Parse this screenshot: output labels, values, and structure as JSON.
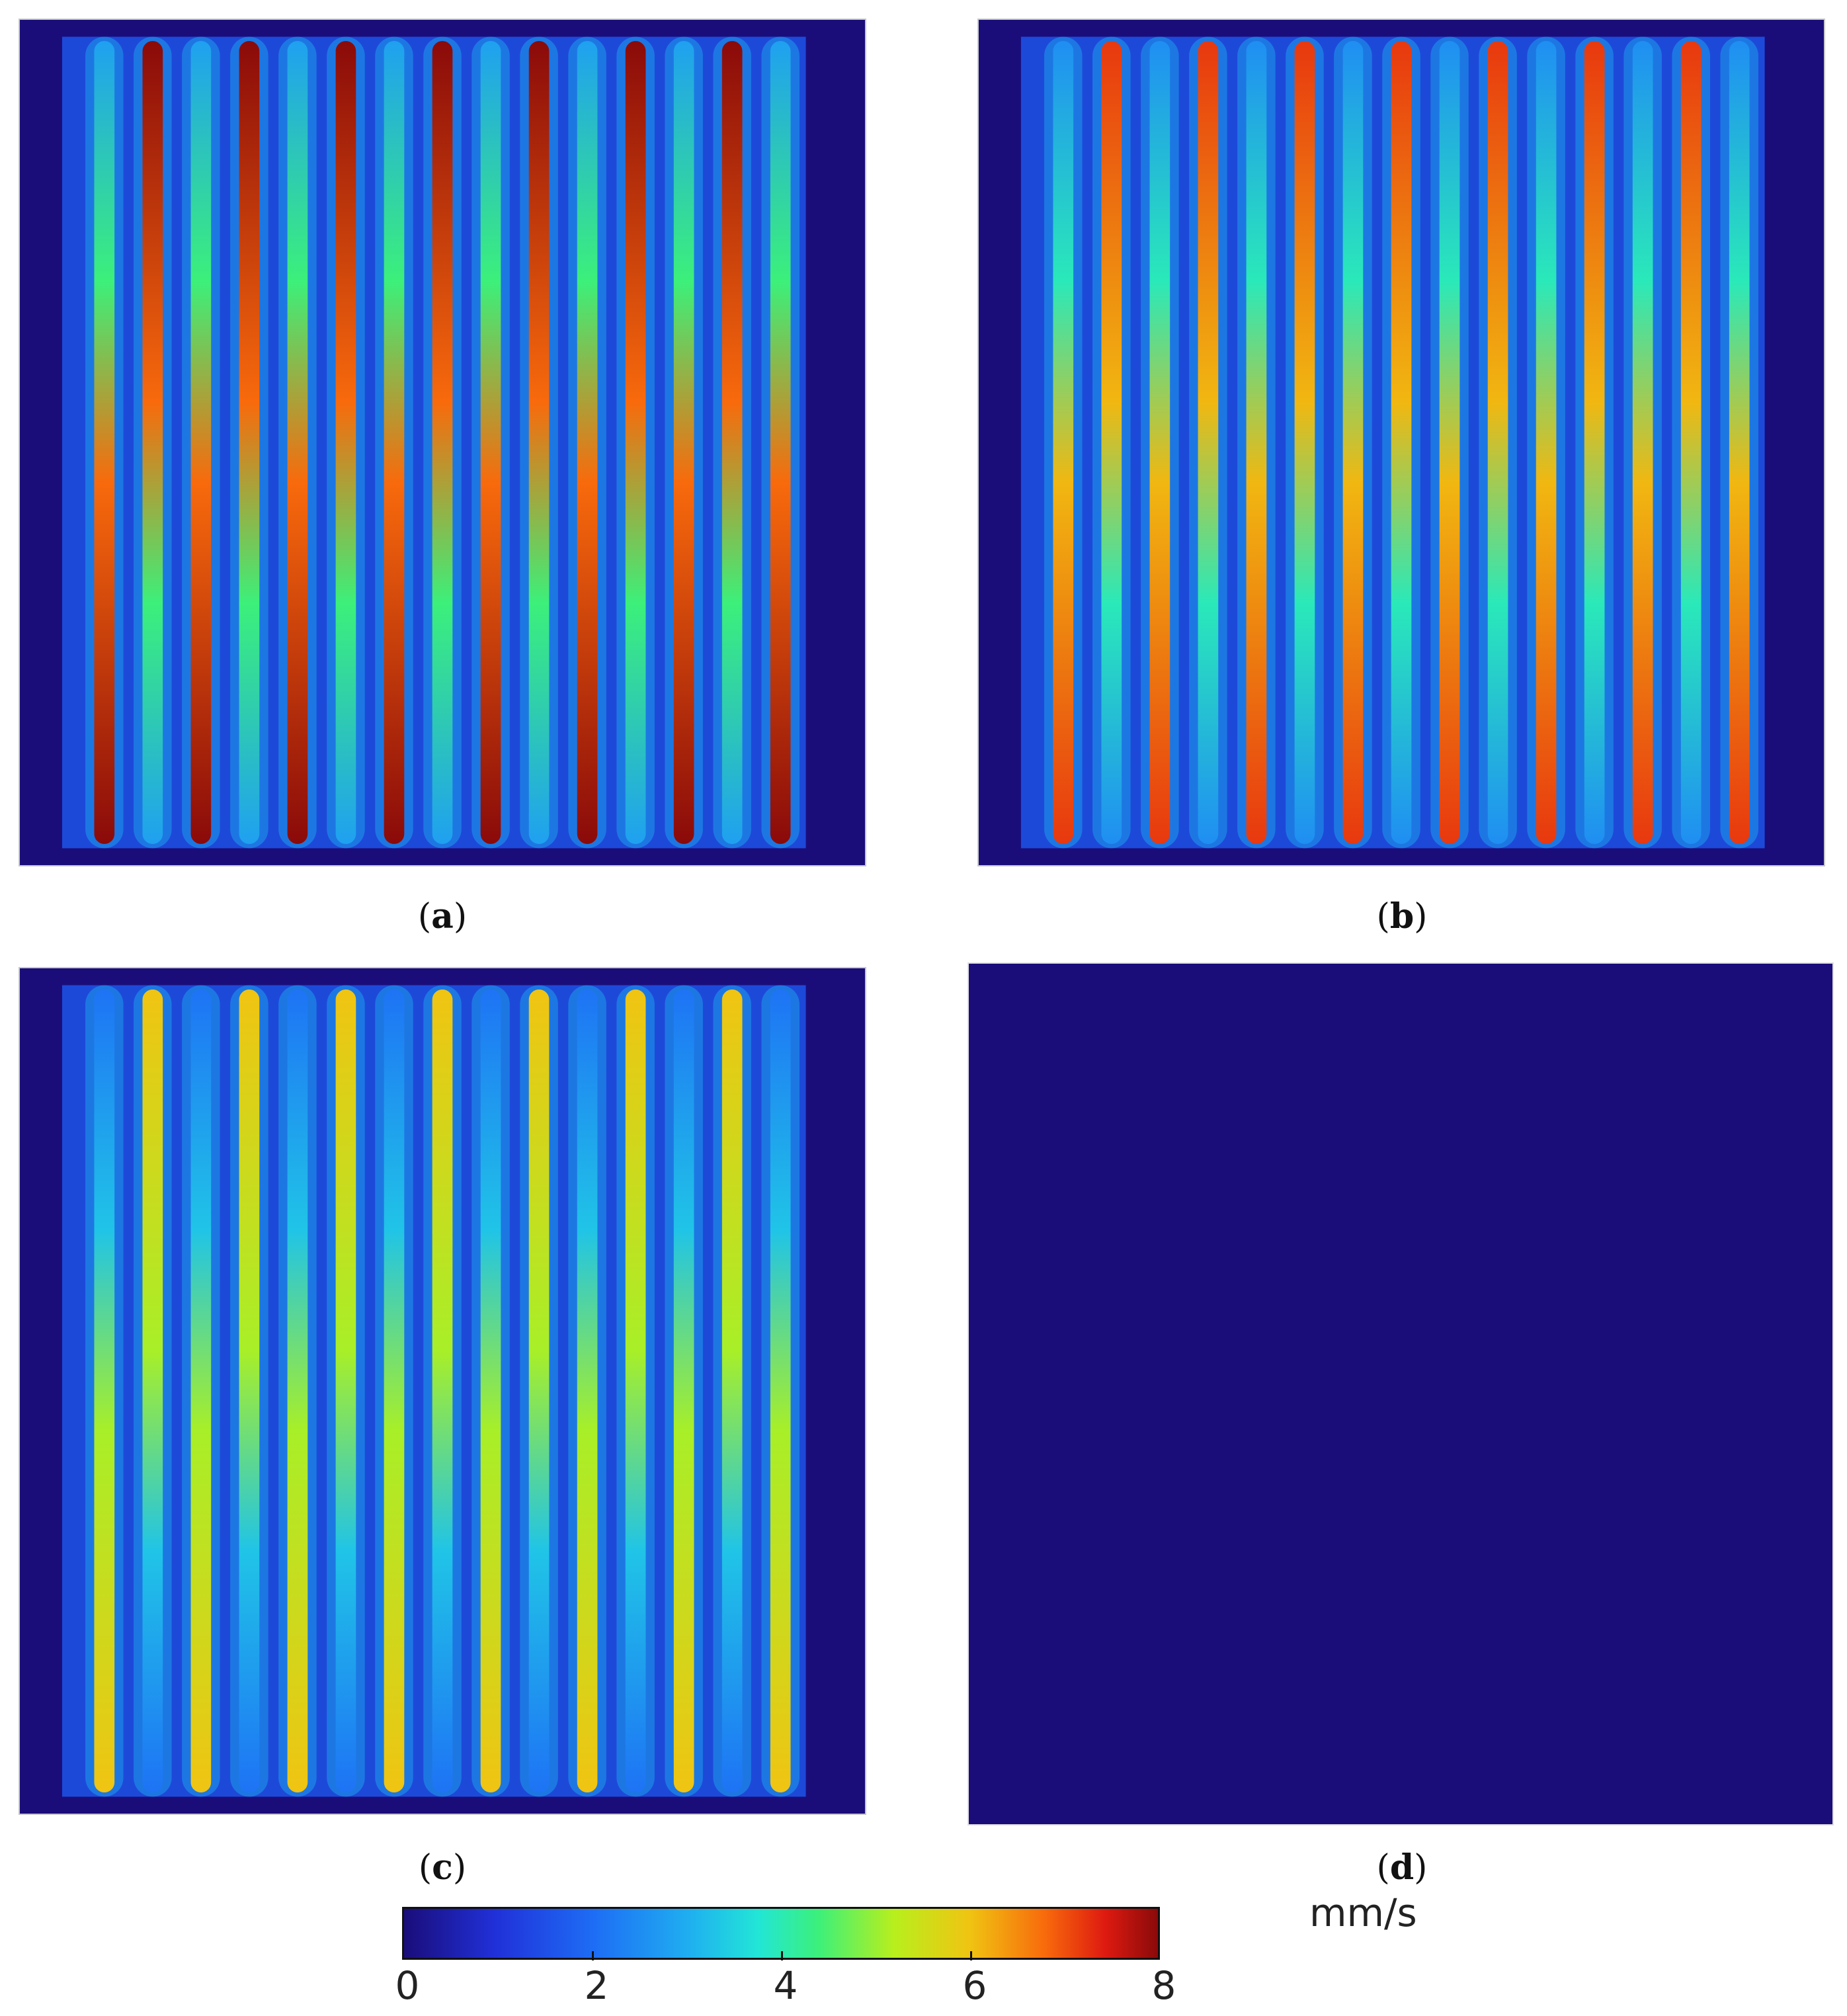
{
  "chart_data": {
    "type": "heatmap",
    "title": "",
    "colormap": "jet",
    "colorbar": {
      "min": 0,
      "max": 8,
      "ticks": [
        "0",
        "2",
        "4",
        "6",
        "8"
      ],
      "unit": "mm/s"
    },
    "panels": [
      {
        "label_letter": "a",
        "stripes": 15,
        "peak_velocity": 8.0,
        "description_values": [
          8,
          8,
          8,
          8,
          8,
          8,
          8,
          8,
          8,
          8,
          8,
          8,
          8,
          8,
          8
        ]
      },
      {
        "label_letter": "b",
        "stripes": 15,
        "peak_velocity": 7.2,
        "description_values": [
          7,
          7,
          7,
          7,
          7,
          7,
          7,
          7,
          7,
          7,
          7,
          7,
          7,
          7,
          7
        ]
      },
      {
        "label_letter": "c",
        "stripes": 15,
        "peak_velocity": 6.0,
        "description_values": [
          6,
          6,
          6,
          6,
          6,
          6,
          6,
          6,
          6,
          6,
          6,
          6,
          6,
          6,
          6
        ]
      },
      {
        "label_letter": "d",
        "stripes": 0,
        "peak_velocity": 0,
        "description_values": []
      }
    ]
  }
}
